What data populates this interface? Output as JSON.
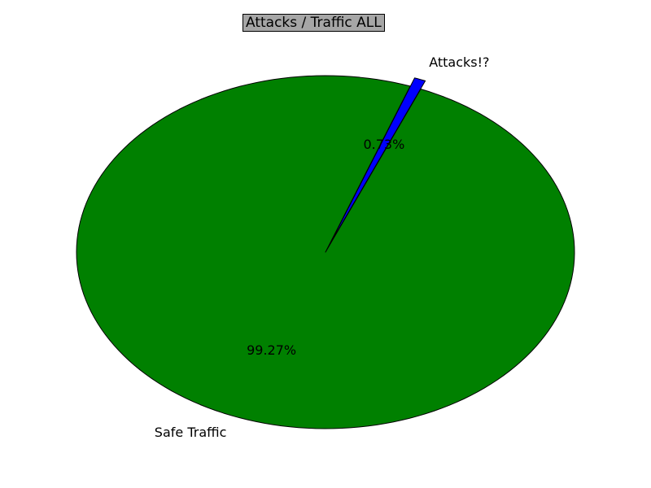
{
  "chart_data": {
    "type": "pie",
    "title": "Attacks / Traffic ALL",
    "slices": [
      {
        "label": "Attacks!?",
        "value": 0.73,
        "pct_label": "0.73%",
        "color": "#0000ff",
        "explode": true
      },
      {
        "label": "Safe Traffic",
        "value": 99.27,
        "pct_label": "99.27%",
        "color": "#008000",
        "explode": false
      }
    ],
    "title_background": "#a6a6a6"
  }
}
